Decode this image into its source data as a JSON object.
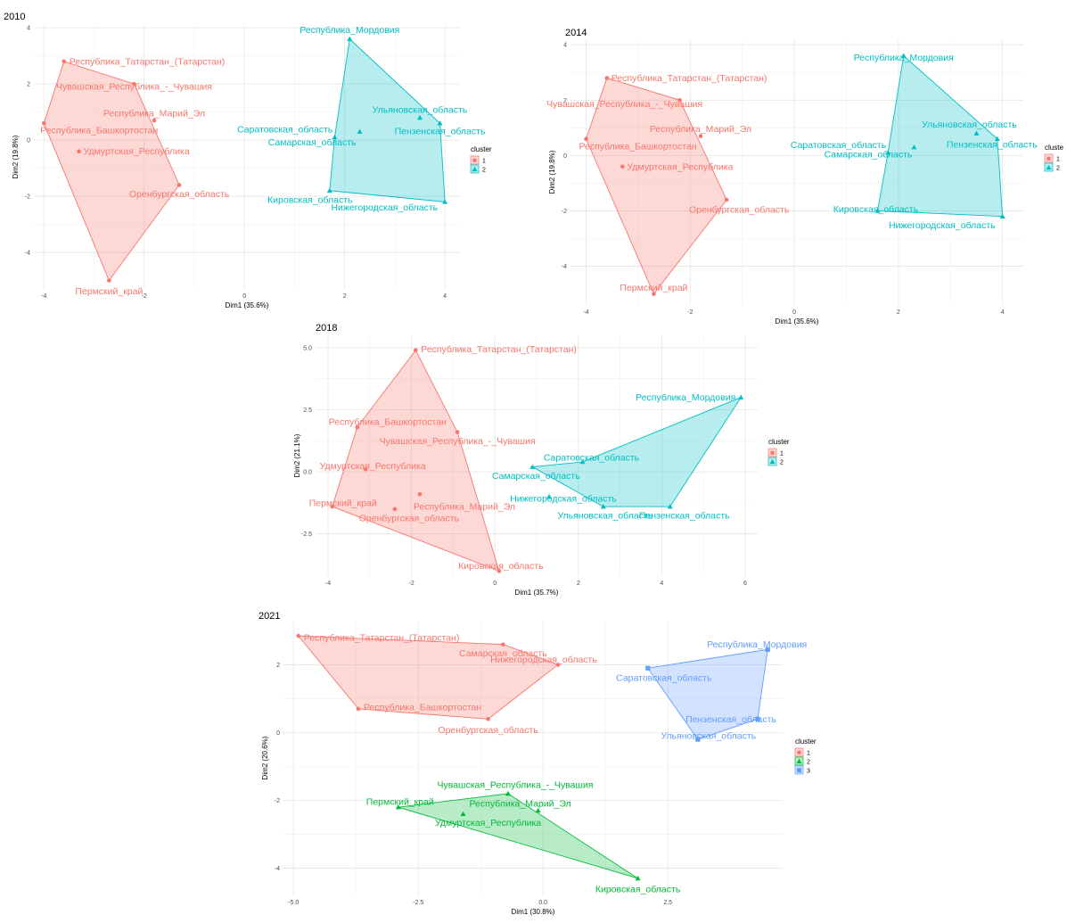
{
  "colors": {
    "c1": "#F8766D",
    "c2": "#00BFC4",
    "g1": "#F8766D",
    "g2": "#00BA38",
    "g3": "#619CFF"
  },
  "chart_data": [
    {
      "type": "scatter",
      "title": "2010",
      "xlabel": "Dim1 (35.6%)",
      "ylabel": "Dim2 (19.8%)",
      "xlim": [
        -4.2,
        4.3
      ],
      "ylim": [
        -5.3,
        4.1
      ],
      "xticks": [
        -4,
        -2,
        0,
        2,
        4
      ],
      "yticks": [
        -4,
        -2,
        0,
        2,
        4
      ],
      "legend": {
        "title": "cluster",
        "entries": [
          "1",
          "2"
        ],
        "position": "right"
      },
      "points": [
        {
          "label": "Республика_Татарстан_(Татарстан)",
          "x": -3.6,
          "y": 2.8,
          "cluster": 1
        },
        {
          "label": "Чувашская_Республика_-_Чувашия",
          "x": -2.2,
          "y": 2.0,
          "cluster": 1
        },
        {
          "label": "Республика_Марий_Эл",
          "x": -1.8,
          "y": 0.7,
          "cluster": 1
        },
        {
          "label": "Республика_Башкортостан",
          "x": -4.0,
          "y": 0.6,
          "cluster": 1
        },
        {
          "label": "Удмуртская_Республика",
          "x": -3.3,
          "y": -0.4,
          "cluster": 1
        },
        {
          "label": "Оренбургская_область",
          "x": -1.3,
          "y": -1.6,
          "cluster": 1
        },
        {
          "label": "Пермский_край",
          "x": -2.7,
          "y": -5.0,
          "cluster": 1
        },
        {
          "label": "Республика_Мордовия",
          "x": 2.1,
          "y": 3.6,
          "cluster": 2
        },
        {
          "label": "Ульяновская_область",
          "x": 3.5,
          "y": 0.8,
          "cluster": 2
        },
        {
          "label": "Пензенская_область",
          "x": 3.9,
          "y": 0.6,
          "cluster": 2
        },
        {
          "label": "Саратовская_область",
          "x": 1.8,
          "y": 0.1,
          "cluster": 2
        },
        {
          "label": "Самарская_область",
          "x": 2.3,
          "y": 0.3,
          "cluster": 2
        },
        {
          "label": "Кировская_область",
          "x": 1.7,
          "y": -1.8,
          "cluster": 2
        },
        {
          "label": "Нижегородская_область",
          "x": 4.0,
          "y": -2.2,
          "cluster": 2
        }
      ],
      "hulls": [
        {
          "cluster": 1,
          "labels": [
            "Республика_Татарстан_(Татарстан)",
            "Чувашская_Республика_-_Чувашия",
            "Оренбургская_область",
            "Пермский_край",
            "Республика_Башкортостан"
          ]
        },
        {
          "cluster": 2,
          "labels": [
            "Республика_Мордовия",
            "Пензенская_область",
            "Нижегородская_область",
            "Кировская_область",
            "Саратовская_область"
          ]
        }
      ]
    },
    {
      "type": "scatter",
      "title": "2014",
      "xlabel": "Dim1 (35.6%)",
      "ylabel": "Dim2 (19.8%)",
      "xlim": [
        -4.3,
        4.4
      ],
      "ylim": [
        -5.4,
        4.2
      ],
      "xticks": [
        -4,
        -2,
        0,
        2,
        4
      ],
      "yticks": [
        -4,
        -2,
        0,
        2,
        4
      ],
      "legend": {
        "title": "cluste",
        "entries": [
          "1",
          "2"
        ],
        "position": "right"
      },
      "points": [
        {
          "label": "Республика_Татарстан_(Татарстан)",
          "x": -3.6,
          "y": 2.8,
          "cluster": 1
        },
        {
          "label": "Чувашская_Республика_-_Чувашия",
          "x": -2.2,
          "y": 2.0,
          "cluster": 1
        },
        {
          "label": "Республика_Марий_Эл",
          "x": -1.8,
          "y": 0.7,
          "cluster": 1
        },
        {
          "label": "Республика_Башкортостан",
          "x": -4.0,
          "y": 0.6,
          "cluster": 1
        },
        {
          "label": "Удмуртская_Республика",
          "x": -3.3,
          "y": -0.4,
          "cluster": 1
        },
        {
          "label": "Оренбургская_область",
          "x": -1.3,
          "y": -1.6,
          "cluster": 1
        },
        {
          "label": "Пермский_край",
          "x": -2.7,
          "y": -5.0,
          "cluster": 1
        },
        {
          "label": "Республика_Мордовия",
          "x": 2.1,
          "y": 3.6,
          "cluster": 2
        },
        {
          "label": "Ульяновская_область",
          "x": 3.5,
          "y": 0.8,
          "cluster": 2
        },
        {
          "label": "Пензенская_область",
          "x": 3.9,
          "y": 0.6,
          "cluster": 2
        },
        {
          "label": "Саратовская_область",
          "x": 1.8,
          "y": 0.1,
          "cluster": 2
        },
        {
          "label": "Самарская_область",
          "x": 2.3,
          "y": 0.3,
          "cluster": 2
        },
        {
          "label": "Кировская_область",
          "x": 1.6,
          "y": -2.0,
          "cluster": 2
        },
        {
          "label": "Нижегородская_область",
          "x": 4.0,
          "y": -2.2,
          "cluster": 2
        }
      ],
      "hulls": [
        {
          "cluster": 1,
          "labels": [
            "Республика_Татарстан_(Татарстан)",
            "Чувашская_Республика_-_Чувашия",
            "Оренбургская_область",
            "Пермский_край",
            "Республика_Башкортостан"
          ]
        },
        {
          "cluster": 2,
          "labels": [
            "Республика_Мордовия",
            "Пензенская_область",
            "Нижегородская_область",
            "Кировская_область",
            "Саратовская_область"
          ]
        }
      ]
    },
    {
      "type": "scatter",
      "title": "2018",
      "xlabel": "Dim1 (35.7%)",
      "ylabel": "Dim2 (21.1%)",
      "xlim": [
        -4.3,
        6.3
      ],
      "ylim": [
        -4.2,
        5.5
      ],
      "xticks": [
        -4,
        -2,
        0,
        2,
        4,
        6
      ],
      "yticks": [
        -2.5,
        0.0,
        2.5,
        5.0
      ],
      "legend": {
        "title": "cluster",
        "entries": [
          "1",
          "2"
        ],
        "position": "right"
      },
      "points": [
        {
          "label": "Республика_Татарстан_(Татарстан)",
          "x": -1.9,
          "y": 4.9,
          "cluster": 1
        },
        {
          "label": "Республика_Башкортостан",
          "x": -3.3,
          "y": 1.8,
          "cluster": 1
        },
        {
          "label": "Чувашская_Республика_-_Чувашия",
          "x": -0.9,
          "y": 1.6,
          "cluster": 1
        },
        {
          "label": "Удмуртская_Республика",
          "x": -3.1,
          "y": 0.1,
          "cluster": 1
        },
        {
          "label": "Республика_Марий_Эл",
          "x": -1.8,
          "y": -0.9,
          "cluster": 1
        },
        {
          "label": "Пермский_край",
          "x": -3.9,
          "y": -1.4,
          "cluster": 1
        },
        {
          "label": "Оренбургская_область",
          "x": -2.4,
          "y": -1.5,
          "cluster": 1
        },
        {
          "label": "Кировская_область",
          "x": 0.1,
          "y": -4.0,
          "cluster": 1
        },
        {
          "label": "Республика_Мордовия",
          "x": 5.9,
          "y": 3.0,
          "cluster": 2
        },
        {
          "label": "Саратовская_область",
          "x": 2.1,
          "y": 0.4,
          "cluster": 2
        },
        {
          "label": "Самарская_область",
          "x": 0.9,
          "y": 0.2,
          "cluster": 2
        },
        {
          "label": "Нижегородская_область",
          "x": 1.3,
          "y": -1.0,
          "cluster": 2
        },
        {
          "label": "Ульяновская_область",
          "x": 2.6,
          "y": -1.4,
          "cluster": 2
        },
        {
          "label": "Пензенская_область",
          "x": 4.2,
          "y": -1.4,
          "cluster": 2
        }
      ],
      "hulls": [
        {
          "cluster": 1,
          "labels": [
            "Республика_Татарстан_(Татарстан)",
            "Чувашская_Республика_-_Чувашия",
            "Кировская_область",
            "Пермский_край",
            "Республика_Башкортостан"
          ]
        },
        {
          "cluster": 2,
          "labels": [
            "Республика_Мордовия",
            "Пензенская_область",
            "Ульяновская_область",
            "Самарская_область",
            "Саратовская_область"
          ]
        }
      ]
    },
    {
      "type": "scatter",
      "title": "2021",
      "xlabel": "Dim1 (30.8%)",
      "ylabel": "Dim2 (20.6%)",
      "xlim": [
        -5.2,
        4.8
      ],
      "ylim": [
        -4.8,
        3.3
      ],
      "xticks": [
        -5.0,
        -2.5,
        0.0,
        2.5
      ],
      "yticks": [
        -4,
        -2,
        0,
        2
      ],
      "legend": {
        "title": "cluster",
        "entries": [
          "1",
          "2",
          "3"
        ],
        "position": "right"
      },
      "points": [
        {
          "label": "Республика_Татарстан_(Татарстан)",
          "x": -4.9,
          "y": 2.85,
          "cluster": 1
        },
        {
          "label": "Самарская_область",
          "x": -0.8,
          "y": 2.6,
          "cluster": 1
        },
        {
          "label": "Нижегородская_область",
          "x": 0.3,
          "y": 2.0,
          "cluster": 1
        },
        {
          "label": "Республика_Башкортостан",
          "x": -3.7,
          "y": 0.7,
          "cluster": 1
        },
        {
          "label": "Оренбургская_область",
          "x": -1.1,
          "y": 0.4,
          "cluster": 1
        },
        {
          "label": "Чувашская_Республика_-_Чувашия",
          "x": -0.7,
          "y": -1.8,
          "cluster": 2
        },
        {
          "label": "Пермский_край",
          "x": -2.9,
          "y": -2.2,
          "cluster": 2
        },
        {
          "label": "Республика_Марий_Эл",
          "x": -0.1,
          "y": -2.3,
          "cluster": 2
        },
        {
          "label": "Удмуртская_Республика",
          "x": -1.6,
          "y": -2.4,
          "cluster": 2
        },
        {
          "label": "Кировская_область",
          "x": 1.9,
          "y": -4.3,
          "cluster": 2
        },
        {
          "label": "Республика_Мордовия",
          "x": 4.5,
          "y": 2.45,
          "cluster": 3
        },
        {
          "label": "Саратовская_область",
          "x": 2.1,
          "y": 1.9,
          "cluster": 3
        },
        {
          "label": "Пензенская_область",
          "x": 4.3,
          "y": 0.4,
          "cluster": 3
        },
        {
          "label": "Ульяновская_область",
          "x": 3.1,
          "y": -0.2,
          "cluster": 3
        }
      ],
      "hulls": [
        {
          "cluster": 1,
          "labels": [
            "Республика_Татарстан_(Татарстан)",
            "Самарская_область",
            "Нижегородская_область",
            "Оренбургская_область",
            "Республика_Башкортостан"
          ]
        },
        {
          "cluster": 2,
          "labels": [
            "Пермский_край",
            "Чувашская_Республика_-_Чувашия",
            "Кировская_область"
          ]
        },
        {
          "cluster": 3,
          "labels": [
            "Саратовская_область",
            "Республика_Мордовия",
            "Пензенская_область",
            "Ульяновская_область"
          ]
        }
      ]
    }
  ]
}
